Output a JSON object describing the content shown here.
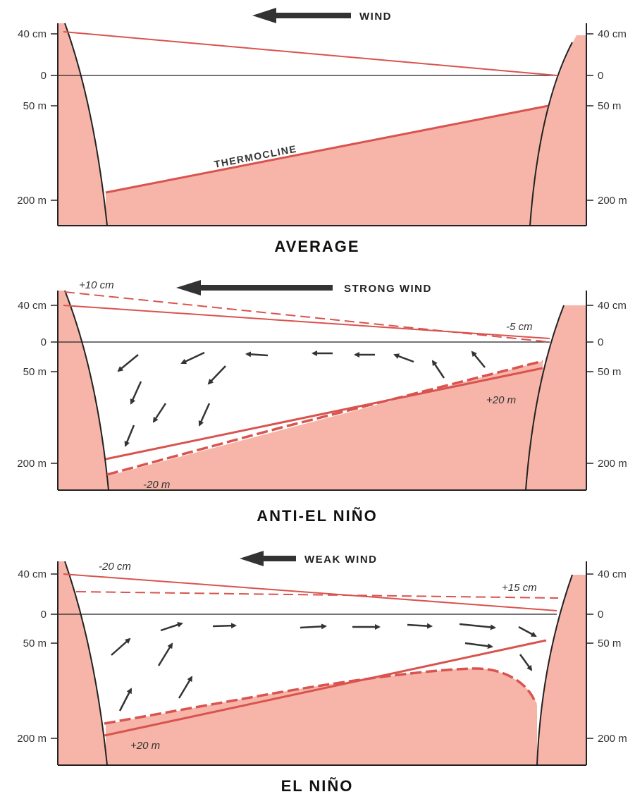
{
  "colors": {
    "land": "#f6b5a8",
    "deep_water": "#f6b5a8",
    "surface_line": "#d9534f",
    "frame": "#222222",
    "arrow": "#333333"
  },
  "panels": [
    {
      "id": "average",
      "title": "AVERAGE",
      "wind_label": "WIND",
      "left_ticks": [
        "40 cm",
        "0",
        "50 m",
        "200 m"
      ],
      "right_ticks": [
        "40 cm",
        "0",
        "50 m",
        "200 m"
      ],
      "thermocline_label": "THERMOCLINE"
    },
    {
      "id": "anti",
      "title": "ANTI-EL NIÑO",
      "wind_label": "STRONG WIND",
      "left_ticks": [
        "40 cm",
        "0",
        "50 m",
        "200 m"
      ],
      "right_ticks": [
        "40 cm",
        "0",
        "50 m",
        "200 m"
      ],
      "notes": {
        "sea_level_west": "+10 cm",
        "sea_level_east": "-5 cm",
        "thermocline_east": "+20 m",
        "thermocline_west": "-20 m"
      }
    },
    {
      "id": "elnino",
      "title": "EL NIÑO",
      "wind_label": "WEAK WIND",
      "left_ticks": [
        "40 cm",
        "0",
        "50 m",
        "200 m"
      ],
      "right_ticks": [
        "40 cm",
        "0",
        "50 m",
        "200 m"
      ],
      "notes": {
        "sea_level_west": "-20 cm",
        "sea_level_east": "+15 cm",
        "thermocline_west": "+20 m"
      }
    }
  ]
}
